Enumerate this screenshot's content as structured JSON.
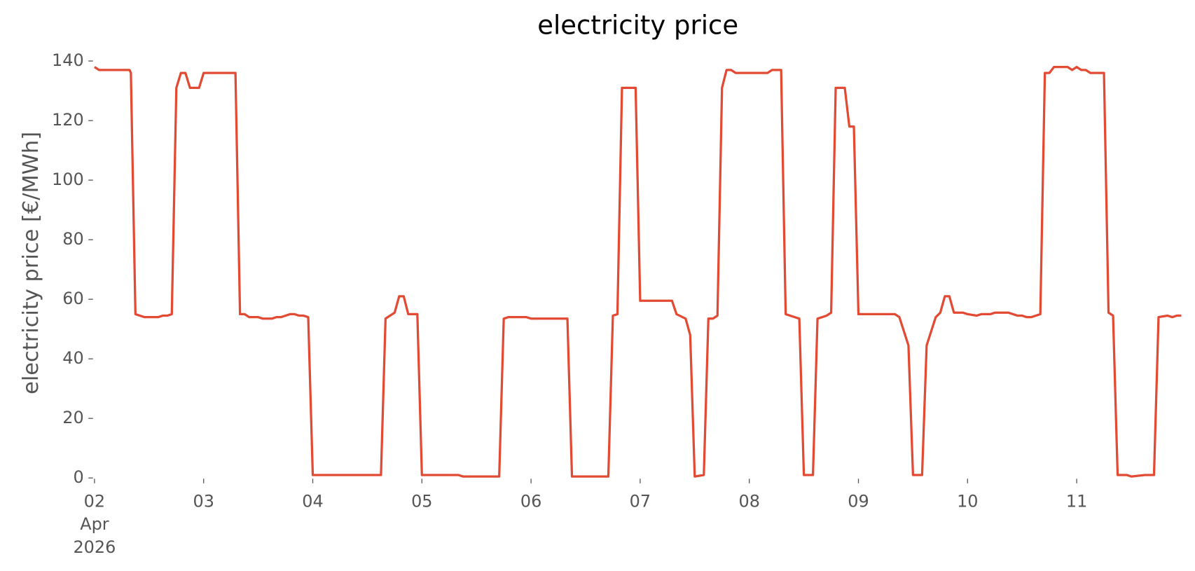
{
  "chart_data": {
    "type": "line",
    "title": "electricity price",
    "y_label": "electricity price [€/MWh]",
    "color": "#E24A33",
    "x": [
      0,
      1,
      7.7,
      8,
      9,
      11,
      14,
      15,
      16,
      17,
      18,
      19,
      20,
      21,
      23,
      24,
      31,
      32,
      33,
      34,
      36,
      37,
      39,
      40,
      41,
      43,
      44,
      45,
      46,
      47,
      48,
      63,
      64,
      66,
      67,
      68,
      69,
      71,
      72,
      80,
      81,
      89,
      90,
      91,
      95,
      96,
      104,
      105,
      113,
      114,
      115,
      116,
      119,
      120,
      127,
      128,
      130,
      131,
      132,
      134,
      135,
      136,
      137,
      138,
      139,
      140,
      141,
      148,
      149,
      151,
      152,
      154,
      155,
      156,
      158,
      159,
      161,
      162,
      163,
      165,
      166,
      167,
      168,
      176,
      177,
      179,
      180,
      182,
      183,
      185,
      186,
      187,
      188,
      189,
      191,
      192,
      194,
      195,
      197,
      198,
      201,
      203,
      204,
      205,
      206,
      207,
      208,
      209,
      210,
      211,
      214,
      215,
      216,
      217,
      218,
      219,
      222,
      223,
      224,
      225,
      227,
      228,
      231,
      233,
      234,
      236,
      237,
      238,
      239
    ],
    "values": [
      138,
      137,
      137,
      136,
      55,
      54,
      54,
      54.5,
      54.5,
      55,
      131,
      136,
      136,
      131,
      131,
      136,
      136,
      55,
      55,
      54,
      54,
      53.5,
      53.5,
      54,
      54,
      55,
      55,
      54.5,
      54.5,
      54,
      1,
      1,
      53.5,
      55.5,
      61,
      61,
      55,
      55,
      1,
      1,
      0.5,
      0.5,
      53.5,
      54,
      54,
      53.5,
      53.5,
      0.5,
      0.5,
      54.5,
      55,
      131,
      131,
      59.5,
      59.5,
      55,
      53.5,
      48,
      0.5,
      1,
      53.5,
      53.5,
      54.5,
      131,
      137,
      137,
      136,
      136,
      137,
      137,
      55,
      54,
      53.5,
      1,
      1,
      53.5,
      54.5,
      55.5,
      131,
      131,
      118,
      118,
      55,
      55,
      54,
      44.5,
      1,
      1,
      44.5,
      54,
      55.5,
      61,
      61,
      55.5,
      55.5,
      55,
      54.5,
      55,
      55,
      55.5,
      55.5,
      54.5,
      54.5,
      54,
      54,
      54.5,
      55,
      136,
      136,
      138,
      138,
      137,
      138,
      137,
      137,
      136,
      136,
      55.5,
      54.5,
      1,
      1,
      0.5,
      1,
      1,
      54,
      54.5,
      54,
      54.5,
      54.5
    ],
    "xlim": [
      0,
      239
    ],
    "xticks": [
      {
        "value": 0,
        "label": "02\nApr\n2026"
      },
      {
        "value": 24,
        "label": "03"
      },
      {
        "value": 48,
        "label": "04"
      },
      {
        "value": 72,
        "label": "05"
      },
      {
        "value": 96,
        "label": "06"
      },
      {
        "value": 120,
        "label": "07"
      },
      {
        "value": 144,
        "label": "08"
      },
      {
        "value": 168,
        "label": "09"
      },
      {
        "value": 192,
        "label": "10"
      },
      {
        "value": 216,
        "label": "11"
      }
    ],
    "ylim": [
      0,
      140
    ],
    "yticks": [
      0,
      20,
      40,
      60,
      80,
      100,
      120,
      140
    ]
  }
}
